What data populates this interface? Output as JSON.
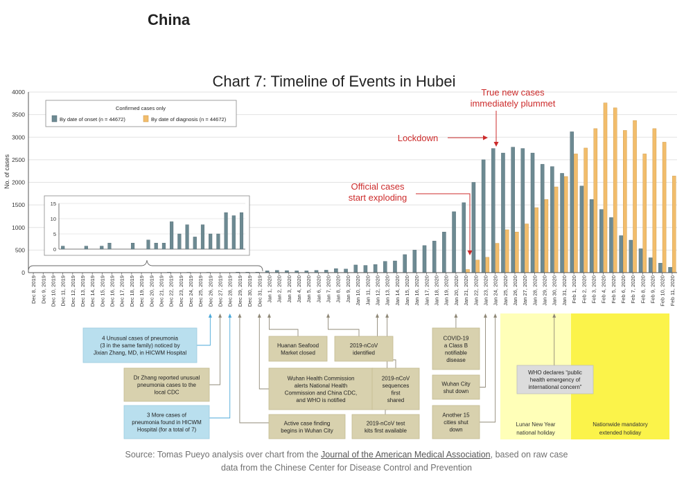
{
  "page": {
    "heading": "China"
  },
  "chart_data": {
    "type": "bar",
    "title": "Chart 7: Timeline of Events in Hubei",
    "ylabel": "No. of cases",
    "ylim": [
      0,
      4000
    ],
    "yticks": [
      0,
      500,
      1000,
      1500,
      2000,
      2500,
      3000,
      3500,
      4000
    ],
    "legend": {
      "title": "Confirmed cases only",
      "position": "top-left",
      "colors": {
        "onset": "#6d8a92",
        "diagnosis": "#f2bd6c"
      }
    },
    "categories": [
      "Dec 8, 2019",
      "Dec 9, 2019",
      "Dec 10, 2019",
      "Dec 11, 2019",
      "Dec 12, 2019",
      "Dec 13, 2019",
      "Dec 14, 2019",
      "Dec 15, 2019",
      "Dec 16, 2019",
      "Dec 17, 2019",
      "Dec 18, 2019",
      "Dec 19, 2019",
      "Dec 20, 2019",
      "Dec 21, 2019",
      "Dec 22, 2019",
      "Dec 23, 2019",
      "Dec 24, 2019",
      "Dec 25, 2019",
      "Dec 26, 2019",
      "Dec 27, 2019",
      "Dec 28, 2019",
      "Dec 29, 2019",
      "Dec 30, 2019",
      "Dec 31, 2019",
      "Jan 1, 2020",
      "Jan 2, 2020",
      "Jan 3, 2020",
      "Jan 4, 2020",
      "Jan 5, 2020",
      "Jan 6, 2020",
      "Jan 7, 2020",
      "Jan 8, 2020",
      "Jan 9, 2020",
      "Jan 10, 2020",
      "Jan 11, 2020",
      "Jan 12, 2020",
      "Jan 13, 2020",
      "Jan 14, 2020",
      "Jan 15, 2020",
      "Jan 16, 2020",
      "Jan 17, 2020",
      "Jan 18, 2020",
      "Jan 19, 2020",
      "Jan 20, 2020",
      "Jan 21, 2020",
      "Jan 22, 2020",
      "Jan 23, 2020",
      "Jan 24, 2020",
      "Jan 25, 2020",
      "Jan 26, 2020",
      "Jan 27, 2020",
      "Jan 28, 2020",
      "Jan 29, 2020",
      "Jan 30, 2020",
      "Jan 31, 2020",
      "Feb 1, 2020",
      "Feb 2, 2020",
      "Feb 3, 2020",
      "Feb 4, 2020",
      "Feb 5, 2020",
      "Feb 6, 2020",
      "Feb 7, 2020",
      "Feb 8, 2020",
      "Feb 9, 2020",
      "Feb 10, 2020",
      "Feb 11, 2020"
    ],
    "series": [
      {
        "name": "By date of onset (n = 44672)",
        "key": "onset",
        "values": [
          1,
          0,
          0,
          1,
          0,
          1,
          2,
          0,
          0,
          2,
          0,
          3,
          2,
          2,
          9,
          5,
          8,
          4,
          8,
          5,
          5,
          12,
          11,
          12,
          40,
          50,
          45,
          40,
          40,
          50,
          55,
          90,
          80,
          170,
          160,
          180,
          250,
          260,
          400,
          500,
          600,
          700,
          900,
          1350,
          1550,
          2000,
          2500,
          2750,
          2650,
          2780,
          2750,
          2650,
          2400,
          2350,
          2200,
          3120,
          1920,
          1620,
          1400,
          1220,
          820,
          720,
          530,
          330,
          210,
          120
        ]
      },
      {
        "name": "By date of diagnosis (n = 44672)",
        "key": "diagnosis",
        "values": [
          0,
          0,
          0,
          0,
          0,
          0,
          0,
          0,
          0,
          0,
          0,
          0,
          0,
          0,
          0,
          0,
          0,
          0,
          0,
          0,
          0,
          0,
          0,
          0,
          0,
          0,
          0,
          0,
          0,
          0,
          0,
          0,
          0,
          0,
          0,
          0,
          0,
          0,
          0,
          0,
          0,
          0,
          0,
          0,
          70,
          280,
          340,
          650,
          950,
          900,
          1080,
          1440,
          1620,
          1900,
          2130,
          2630,
          2760,
          3190,
          3760,
          3650,
          3150,
          3370,
          2630,
          3190,
          2890,
          2140
        ]
      }
    ],
    "inset": {
      "ylim": [
        0,
        15
      ],
      "yticks": [
        0,
        5,
        10,
        15
      ],
      "range": [
        "Dec 8, 2019",
        "Dec 31, 2019"
      ],
      "values": [
        1,
        0,
        0,
        1,
        0,
        1,
        2,
        0,
        0,
        2,
        0,
        3,
        2,
        2,
        9,
        5,
        8,
        4,
        8,
        5,
        5,
        12,
        11,
        12
      ]
    },
    "annotations": [
      {
        "text": "True new cases immediately plummet",
        "lines": [
          "True new cases",
          "immediately plummet"
        ],
        "color": "#cc2b2b"
      },
      {
        "text": "Lockdown",
        "lines": [
          "Lockdown"
        ],
        "color": "#cc2b2b"
      },
      {
        "text": "Official cases start exploding",
        "lines": [
          "Official cases",
          "start exploding"
        ],
        "color": "#cc2b2b"
      }
    ],
    "events": [
      {
        "text": "4 Unusual cases of pneumonia (3 in the same family) noticed by Jixian Zhang, MD, in HICWM Hospital",
        "lines": [
          "4 Unusual cases of pneumonia",
          "(3 in the same family) noticed by",
          "Jixian Zhang, MD, in HICWM Hospital"
        ],
        "style": "blue",
        "date": "Dec 26, 2019"
      },
      {
        "text": "Dr Zhang reported unusual pneumonia cases to the local CDC",
        "lines": [
          "Dr Zhang reported unusual",
          "pneumonia cases to the",
          "local CDC"
        ],
        "style": "tan",
        "date": "Dec 27, 2019"
      },
      {
        "text": "3 More cases of pneumonia found in HICWM Hospital (for a total of 7)",
        "lines": [
          "3 More cases of",
          "pneumonia found in HICWM",
          "Hospital (for a total of 7)"
        ],
        "style": "blue",
        "date": "Dec 28, 2019"
      },
      {
        "text": "Huanan Seafood Market closed",
        "lines": [
          "Huanan Seafood",
          "Market closed"
        ],
        "style": "tan",
        "date": "Jan 1, 2020"
      },
      {
        "text": "2019-nCoV identified",
        "lines": [
          "2019-nCoV",
          "identified"
        ],
        "style": "tan",
        "date": "Jan 7, 2020"
      },
      {
        "text": "Wuhan Health Commission alerts National Health Commission and China CDC, and WHO is notified",
        "lines": [
          "Wuhan Health Commission",
          "alerts National Health",
          "Commission and China CDC,",
          "and WHO is notified"
        ],
        "style": "tan",
        "date": "Dec 31, 2019"
      },
      {
        "text": "2019-nCoV sequences first shared",
        "lines": [
          "2019-nCoV",
          "sequences",
          "first",
          "shared"
        ],
        "style": "tan",
        "date": "Jan 12, 2020"
      },
      {
        "text": "Active case finding begins in Wuhan City",
        "lines": [
          "Active case finding",
          "begins in Wuhan City"
        ],
        "style": "tan",
        "date": "Dec 29, 2019"
      },
      {
        "text": "2019-nCoV test kits first available",
        "lines": [
          "2019-nCoV test",
          "kits first available"
        ],
        "style": "tan",
        "date": "Jan 13, 2020"
      },
      {
        "text": "COVID-19 a Class B notifiable disease",
        "lines": [
          "COVID-19",
          "a Class B",
          "notifiable",
          "disease"
        ],
        "style": "tan",
        "date": "Jan 20, 2020"
      },
      {
        "text": "Wuhan City shut down",
        "lines": [
          "Wuhan City",
          "shut down"
        ],
        "style": "tan",
        "date": "Jan 23, 2020"
      },
      {
        "text": "Another 15 cities shut down",
        "lines": [
          "Another 15",
          "cities shut",
          "down"
        ],
        "style": "tan",
        "date": "Jan 24, 2020"
      },
      {
        "text": "WHO declares \"public health emergency of international concern\"",
        "lines": [
          "WHO declares “public",
          "health emergency of",
          "international concern”"
        ],
        "style": "gray",
        "date": "Jan 30, 2020"
      }
    ],
    "periods": [
      {
        "text": "Lunar New Year national holiday",
        "lines": [
          "Lunar New Year",
          "national holiday"
        ],
        "start": "Jan 24, 2020",
        "end": "Jan 31, 2020",
        "color": "#ffffb8"
      },
      {
        "text": "Nationwide mandatory extended holiday",
        "lines": [
          "Nationwide mandatory",
          "extended holiday"
        ],
        "start": "Jan 31, 2020",
        "end": "Feb 11, 2020",
        "color": "#fbf34a"
      }
    ]
  },
  "source": {
    "prefix": "Source: Tomas Pueyo analysis over chart from the ",
    "link": "Journal of the American Medical Association",
    "suffix": ", based on raw case data from the Chinese Center for Disease Control and Prevention"
  }
}
